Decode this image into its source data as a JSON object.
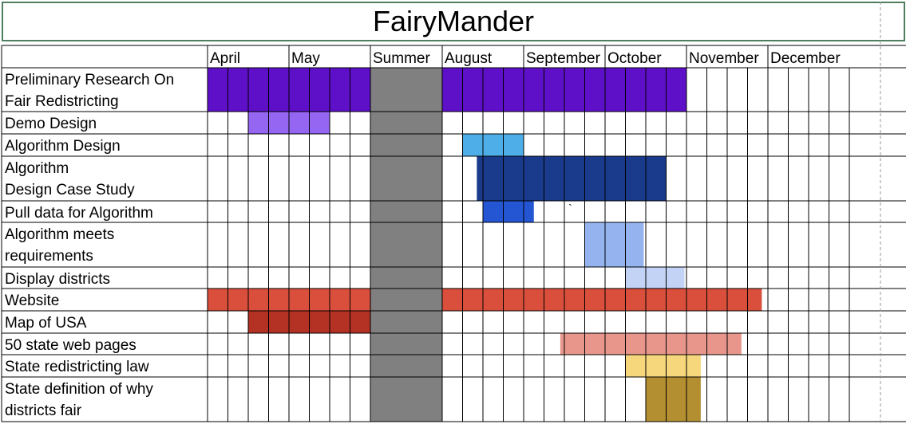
{
  "chart_data": {
    "type": "gantt",
    "title": "FairyMander",
    "columns": [
      {
        "label": "April",
        "weeks": 4
      },
      {
        "label": "May",
        "weeks": 4
      },
      {
        "label": "Summer",
        "weeks": 1
      },
      {
        "label": "August",
        "weeks": 4
      },
      {
        "label": "September",
        "weeks": 4
      },
      {
        "label": "October",
        "weeks": 4
      },
      {
        "label": "November",
        "weeks": 4
      },
      {
        "label": "December",
        "weeks": 4
      }
    ],
    "summer_color": "#808080",
    "tasks": [
      {
        "label": [
          "Preliminary Research On",
          "Fair Redistricting"
        ],
        "bars": [
          {
            "start": 1,
            "end": 8,
            "color": "#5e10c8"
          },
          {
            "start": 10,
            "end": 21,
            "color": "#5e10c8"
          }
        ]
      },
      {
        "label": [
          "Demo Design"
        ],
        "bars": [
          {
            "start": 3,
            "end": 6,
            "color": "#9466f2"
          }
        ]
      },
      {
        "label": [
          "Algorithm Design"
        ],
        "bars": [
          {
            "start": 11,
            "end": 13,
            "color": "#4eaee8"
          }
        ]
      },
      {
        "label": [
          "Algorithm",
          "Design Case Study"
        ],
        "bars": [
          {
            "start": 11.7,
            "end": 20,
            "color": "#1a3a8c"
          }
        ]
      },
      {
        "label": [
          "Pull data for Algorithm"
        ],
        "bars": [
          {
            "start": 12,
            "end": 13.5,
            "color": "#2456d4"
          }
        ]
      },
      {
        "label": [
          "Algorithm meets",
          "requirements"
        ],
        "bars": [
          {
            "start": 17,
            "end": 18.9,
            "color": "#95b4ef"
          }
        ]
      },
      {
        "label": [
          "Display districts"
        ],
        "bars": [
          {
            "start": 19,
            "end": 20.9,
            "color": "#c3d3f6"
          }
        ]
      },
      {
        "label": [
          "Website"
        ],
        "bars": [
          {
            "start": 1,
            "end": 8,
            "color": "#d94f3c"
          },
          {
            "start": 10,
            "end": 24.7,
            "color": "#d94f3c"
          }
        ]
      },
      {
        "label": [
          "Map of USA"
        ],
        "bars": [
          {
            "start": 3,
            "end": 8,
            "color": "#b33224"
          }
        ]
      },
      {
        "label": [
          "50 state web pages"
        ],
        "bars": [
          {
            "start": 15.8,
            "end": 23.7,
            "color": "#e8968b"
          }
        ]
      },
      {
        "label": [
          "State redistricting law"
        ],
        "bars": [
          {
            "start": 19,
            "end": 21.7,
            "color": "#f6d77c"
          }
        ]
      },
      {
        "label": [
          "State definition of why",
          "districts fair"
        ],
        "bars": [
          {
            "start": 20,
            "end": 21.7,
            "color": "#b38f32"
          }
        ]
      }
    ],
    "stray_mark": {
      "text": "`",
      "row": 4,
      "week": 16.2
    }
  }
}
